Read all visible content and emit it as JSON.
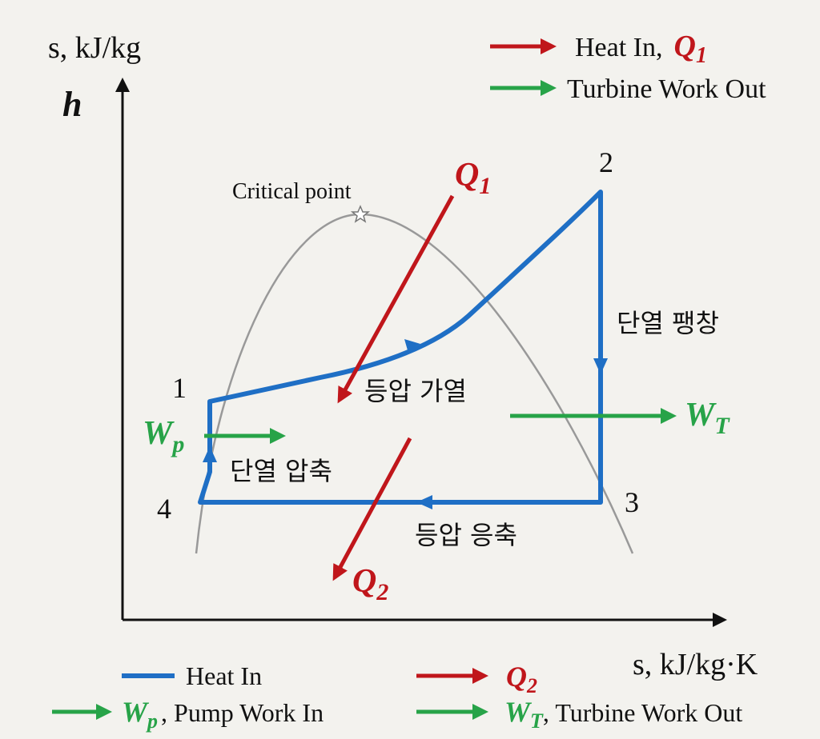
{
  "axes": {
    "y_top_label": "s, kJ/kg",
    "y_label": "h",
    "x_label": "s, kJ/kg·K"
  },
  "top_legend": [
    {
      "text": "Heat In,",
      "symbol": "Q",
      "subscript": "1"
    },
    {
      "text": "Turbine Work Out"
    }
  ],
  "critical_point": "Critical point",
  "states": [
    "1",
    "2",
    "3",
    "4"
  ],
  "processes": [
    "단열 팽창",
    "등압 가열",
    "단열 압축",
    "등압 응축"
  ],
  "symbols": {
    "q1": {
      "symbol": "Q",
      "subscript": "1"
    },
    "q2": {
      "symbol": "Q",
      "subscript": "2"
    },
    "wt": {
      "symbol": "W",
      "subscript": "T"
    },
    "wp": {
      "symbol": "W",
      "subscript": "p"
    }
  },
  "bottom_legend": [
    {
      "text": "Heat In"
    },
    {
      "symbol": "Q",
      "subscript": "2"
    },
    {
      "symbol": "W",
      "subscript": "p",
      "text": ", Pump Work In"
    },
    {
      "symbol": "W",
      "subscript": "T",
      "text": ", Turbine Work Out"
    }
  ]
}
